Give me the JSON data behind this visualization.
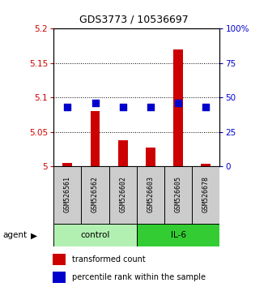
{
  "title": "GDS3773 / 10536697",
  "samples": [
    "GSM526561",
    "GSM526562",
    "GSM526602",
    "GSM526603",
    "GSM526605",
    "GSM526678"
  ],
  "transformed_counts": [
    5.005,
    5.08,
    5.038,
    5.027,
    5.17,
    5.004
  ],
  "percentile_ranks": [
    43,
    46,
    43,
    43,
    46,
    43
  ],
  "ylim_left": [
    5.0,
    5.2
  ],
  "ylim_right": [
    0,
    100
  ],
  "yticks_left": [
    5.0,
    5.05,
    5.1,
    5.15,
    5.2
  ],
  "yticks_right": [
    0,
    25,
    50,
    75,
    100
  ],
  "ytick_labels_left": [
    "5",
    "5.05",
    "5.1",
    "5.15",
    "5.2"
  ],
  "ytick_labels_right": [
    "0",
    "25",
    "50",
    "75",
    "100%"
  ],
  "bar_color": "#cc0000",
  "dot_color": "#0000cc",
  "control_color": "#b2f0b2",
  "il6_color": "#33cc33",
  "left_axis_color": "#cc0000",
  "right_axis_color": "#0000cc",
  "bar_width": 0.35,
  "dot_size": 28,
  "control_range": [
    0,
    3
  ],
  "il6_range": [
    3,
    6
  ]
}
